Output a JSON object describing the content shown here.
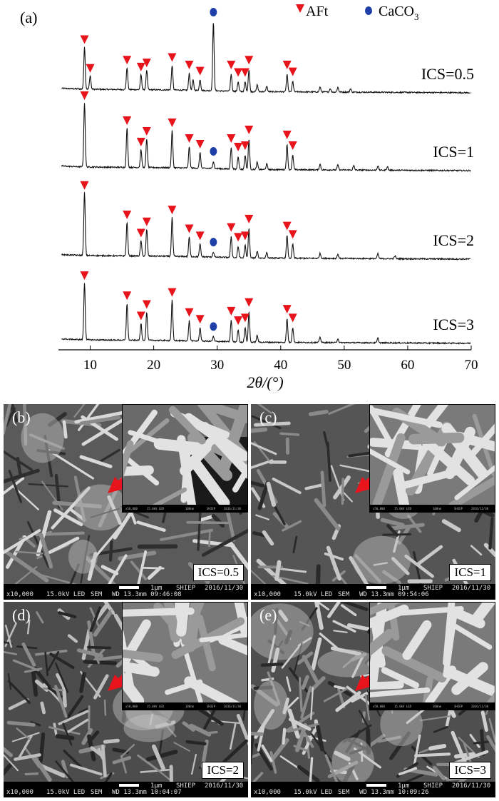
{
  "chart_data": {
    "type": "line",
    "panel_label": "(a)",
    "xlabel": "2θ/(°)",
    "xlim": [
      5,
      70
    ],
    "xticks": [
      10,
      20,
      30,
      40,
      50,
      60,
      70
    ],
    "legend": [
      {
        "name": "AFt",
        "marker": "red-triangle",
        "color": "#e8141c"
      },
      {
        "name": "CaCO3",
        "marker": "blue-circle",
        "color": "#1f3fa8"
      }
    ],
    "legend_placement": "top-right",
    "series": [
      {
        "name": "ICS=0.5",
        "aft_peaks": [
          9.1,
          10.0,
          15.8,
          18.0,
          18.9,
          22.9,
          25.6,
          27.3,
          32.2,
          33.3,
          34.4,
          35.0,
          41.0,
          41.9
        ],
        "caco3_peaks": [
          29.4
        ],
        "peaks": [
          [
            9.1,
            0.62
          ],
          [
            10.0,
            0.2
          ],
          [
            15.8,
            0.32
          ],
          [
            18.0,
            0.22
          ],
          [
            18.9,
            0.28
          ],
          [
            22.9,
            0.36
          ],
          [
            25.6,
            0.25
          ],
          [
            26.2,
            0.15
          ],
          [
            27.3,
            0.16
          ],
          [
            29.4,
            1.0
          ],
          [
            32.2,
            0.25
          ],
          [
            33.3,
            0.14
          ],
          [
            34.4,
            0.14
          ],
          [
            35.0,
            0.32
          ],
          [
            36.3,
            0.1
          ],
          [
            37.8,
            0.08
          ],
          [
            41.0,
            0.25
          ],
          [
            41.9,
            0.15
          ],
          [
            46.2,
            0.07
          ],
          [
            47.8,
            0.05
          ],
          [
            49.0,
            0.07
          ],
          [
            51.0,
            0.05
          ]
        ]
      },
      {
        "name": "ICS=1",
        "aft_peaks": [
          9.1,
          15.8,
          18.0,
          18.9,
          22.9,
          25.6,
          27.3,
          32.2,
          33.3,
          34.4,
          35.0,
          41.0,
          41.9
        ],
        "caco3_peaks": [
          29.4
        ],
        "peaks": [
          [
            9.1,
            0.9
          ],
          [
            15.8,
            0.55
          ],
          [
            18.0,
            0.25
          ],
          [
            18.9,
            0.4
          ],
          [
            22.9,
            0.52
          ],
          [
            25.6,
            0.3
          ],
          [
            27.3,
            0.22
          ],
          [
            29.4,
            0.1
          ],
          [
            32.2,
            0.3
          ],
          [
            33.3,
            0.18
          ],
          [
            34.4,
            0.2
          ],
          [
            35.0,
            0.42
          ],
          [
            36.3,
            0.1
          ],
          [
            37.8,
            0.08
          ],
          [
            41.0,
            0.35
          ],
          [
            41.9,
            0.2
          ],
          [
            46.2,
            0.08
          ],
          [
            49.0,
            0.07
          ],
          [
            51.5,
            0.06
          ],
          [
            55.3,
            0.06
          ],
          [
            56.8,
            0.05
          ]
        ]
      },
      {
        "name": "ICS=2",
        "aft_peaks": [
          9.1,
          15.8,
          18.0,
          18.9,
          22.9,
          25.6,
          27.3,
          32.2,
          33.3,
          34.4,
          35.0,
          41.0,
          41.9
        ],
        "caco3_peaks": [
          29.4
        ],
        "peaks": [
          [
            9.1,
            0.9
          ],
          [
            15.8,
            0.48
          ],
          [
            18.0,
            0.22
          ],
          [
            18.9,
            0.38
          ],
          [
            22.9,
            0.55
          ],
          [
            25.6,
            0.28
          ],
          [
            27.3,
            0.18
          ],
          [
            29.4,
            0.07
          ],
          [
            32.2,
            0.3
          ],
          [
            33.3,
            0.16
          ],
          [
            34.4,
            0.18
          ],
          [
            35.0,
            0.42
          ],
          [
            36.3,
            0.1
          ],
          [
            37.8,
            0.08
          ],
          [
            41.0,
            0.32
          ],
          [
            41.9,
            0.2
          ],
          [
            46.2,
            0.07
          ],
          [
            49.0,
            0.06
          ],
          [
            55.3,
            0.07
          ],
          [
            58.0,
            0.04
          ]
        ]
      },
      {
        "name": "ICS=3",
        "aft_peaks": [
          9.1,
          15.8,
          18.0,
          18.9,
          22.9,
          25.6,
          27.3,
          32.2,
          33.3,
          34.4,
          35.0,
          41.0,
          41.9
        ],
        "caco3_peaks": [
          29.4
        ],
        "peaks": [
          [
            9.1,
            0.85
          ],
          [
            15.8,
            0.55
          ],
          [
            18.0,
            0.25
          ],
          [
            18.9,
            0.42
          ],
          [
            22.9,
            0.6
          ],
          [
            25.6,
            0.3
          ],
          [
            27.3,
            0.2
          ],
          [
            29.4,
            0.07
          ],
          [
            32.2,
            0.32
          ],
          [
            33.3,
            0.18
          ],
          [
            34.4,
            0.22
          ],
          [
            35.0,
            0.45
          ],
          [
            36.3,
            0.1
          ],
          [
            41.0,
            0.35
          ],
          [
            41.9,
            0.22
          ],
          [
            46.2,
            0.08
          ],
          [
            49.0,
            0.06
          ],
          [
            55.3,
            0.07
          ]
        ]
      }
    ]
  },
  "legend_labels": {
    "aft": "AFt",
    "caco3": "CaCO",
    "caco3_sub": "3"
  },
  "sem_panels": [
    {
      "label": "(b)",
      "ics": "ICS=0.5",
      "mag": "x10,000",
      "kv": "15.0kV LED",
      "sem": "SEM",
      "wd": "WD 13.3mm 09:46:08",
      "scale": "1μm",
      "org": "SHIEP",
      "date": "2016/11/30"
    },
    {
      "label": "(c)",
      "ics": "ICS=1",
      "mag": "x10,000",
      "kv": "15.0kV LED",
      "sem": "SEM",
      "wd": "WD 13.3mm 09:54:06",
      "scale": "1μm",
      "org": "SHIEP",
      "date": "2016/11/30"
    },
    {
      "label": "(d)",
      "ics": "ICS=2",
      "mag": "x10,000",
      "kv": "15.0kV LED",
      "sem": "SEM",
      "wd": "WD 13.3mm 10:04:07",
      "scale": "1μm",
      "org": "SHIEP",
      "date": "2016/11/30"
    },
    {
      "label": "(e)",
      "ics": "ICS=3",
      "mag": "x10,000",
      "kv": "15.0kV LED",
      "sem": "SEM",
      "wd": "WD 13.3mm 10:09:26",
      "scale": "1μm",
      "org": "SHIEP",
      "date": "2016/11/30"
    }
  ],
  "inset_footer": {
    "mag": "x50,000",
    "kv": "15.0kV LED",
    "scale": "100nm",
    "org": "SHIEP",
    "date": "2016/11/30"
  }
}
